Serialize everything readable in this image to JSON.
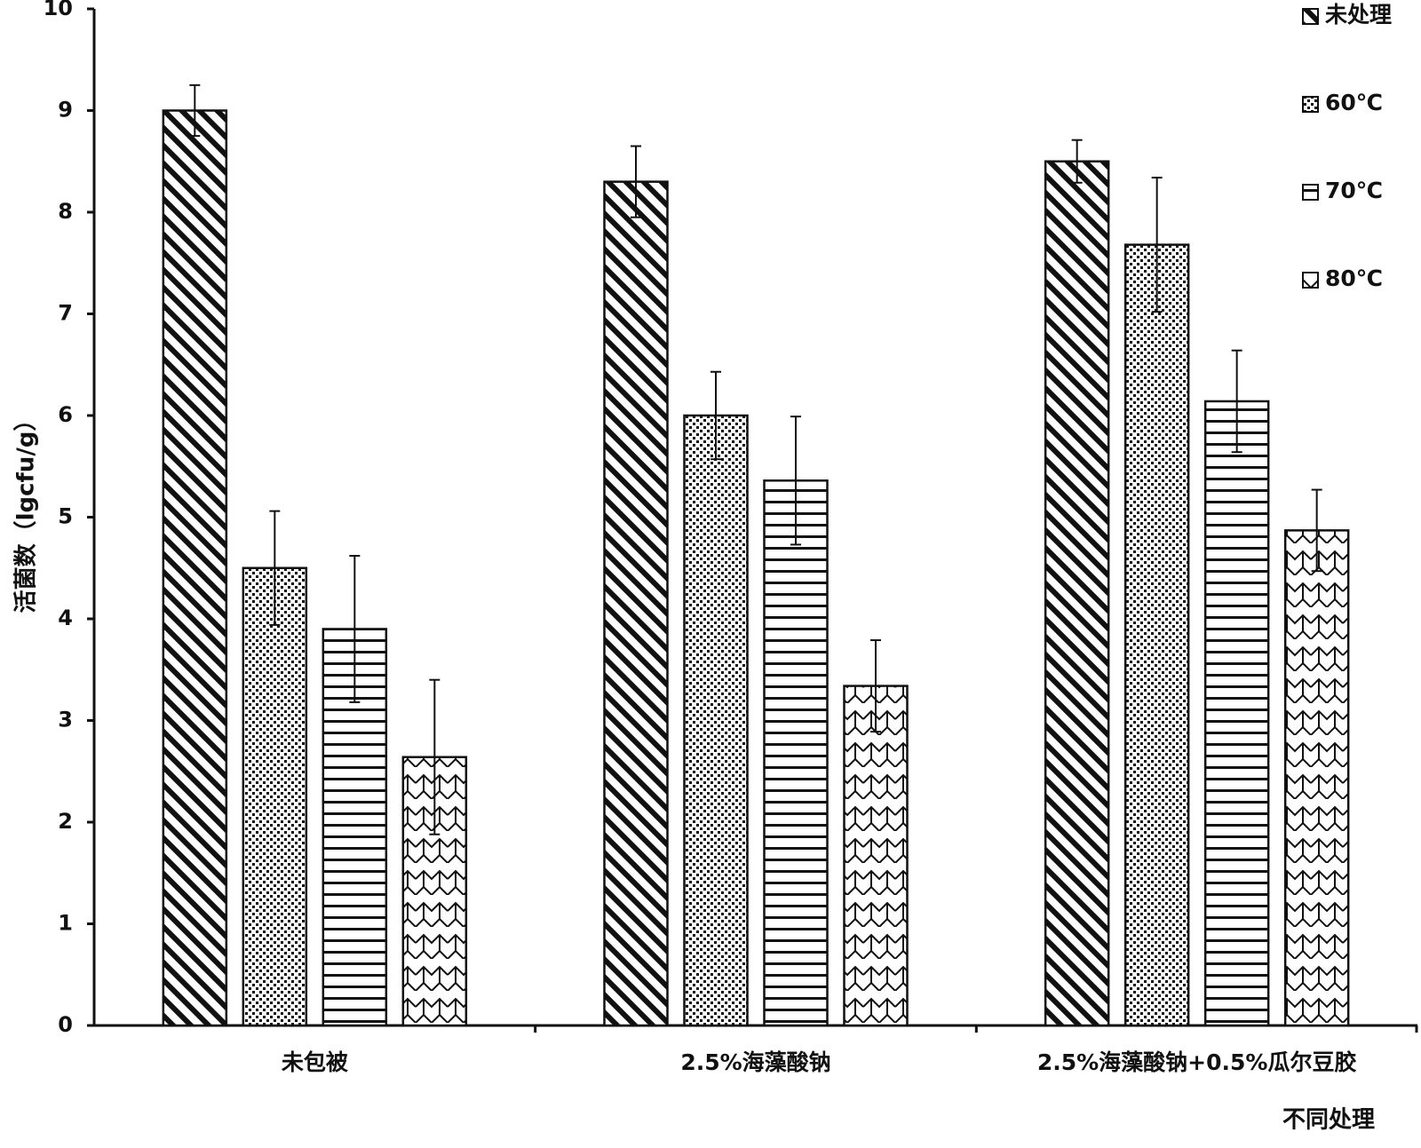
{
  "chart_data": {
    "type": "bar",
    "title": "",
    "xlabel": "不同处理",
    "ylabel": "活菌数（lgcfu/g）",
    "ylim": [
      0,
      10
    ],
    "yticks": [
      "0",
      "1",
      "2",
      "3",
      "4",
      "5",
      "6",
      "7",
      "8",
      "9",
      "10"
    ],
    "categories": [
      "未包被",
      "2.5%海藻酸钠",
      "2.5%海藻酸钠+0.5%瓜尔豆胶"
    ],
    "series": [
      {
        "name": "未处理",
        "pattern": "diagonal",
        "values": [
          9.0,
          8.3,
          8.5
        ],
        "errors": [
          0.25,
          0.35,
          0.21
        ]
      },
      {
        "name": "60℃",
        "pattern": "dots",
        "values": [
          4.5,
          6.0,
          7.68
        ],
        "errors": [
          0.56,
          0.43,
          0.66
        ]
      },
      {
        "name": "70℃",
        "pattern": "horizontal",
        "values": [
          3.9,
          5.36,
          6.14
        ],
        "errors": [
          0.72,
          0.63,
          0.5
        ]
      },
      {
        "name": "80℃",
        "pattern": "zigzag",
        "values": [
          2.64,
          3.34,
          4.87
        ],
        "errors": [
          0.76,
          0.45,
          0.4
        ]
      }
    ],
    "legend_position": "top-right",
    "grid": false,
    "colors": {
      "ink": "#111111",
      "background": "#ffffff"
    }
  }
}
